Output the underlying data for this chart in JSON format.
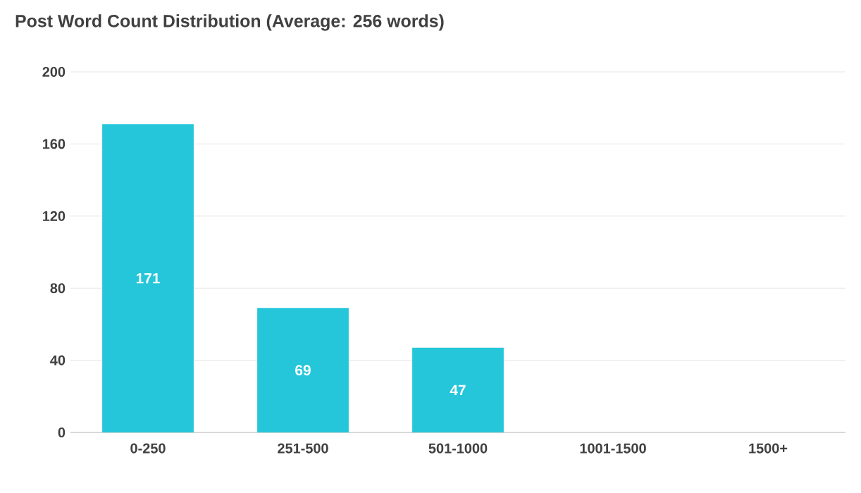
{
  "chart_data": {
    "type": "bar",
    "title": "Post Word Count Distribution (Average: 256 words)",
    "categories": [
      "0-250",
      "251-500",
      "501-1000",
      "1001-1500",
      "1500+"
    ],
    "values": [
      171,
      69,
      47,
      0,
      0
    ],
    "value_labels": [
      "171",
      "69",
      "47",
      null,
      null
    ],
    "color": "#26c6da",
    "ylim": [
      0,
      200
    ],
    "yticks": [
      0,
      40,
      80,
      120,
      160,
      200
    ],
    "grid": "y"
  }
}
